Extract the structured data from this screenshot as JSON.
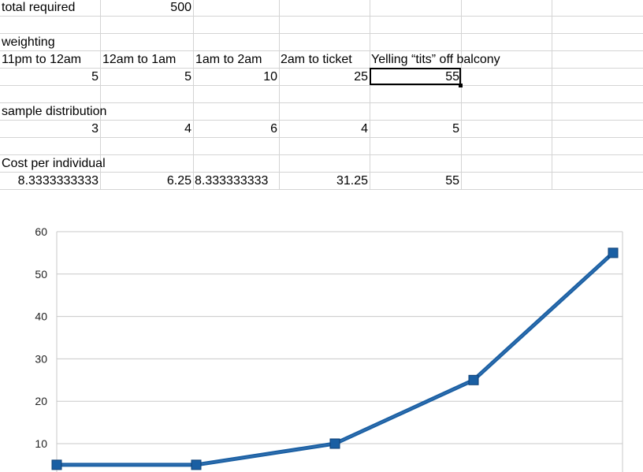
{
  "spreadsheet": {
    "total_required_label": "total required",
    "total_required_value": "500",
    "weighting_label": "weighting",
    "headers": [
      "11pm to 12am",
      "12am to 1am",
      "1am to 2am",
      "2am to ticket",
      "Yelling “tits” off balcony"
    ],
    "weights": [
      "5",
      "5",
      "10",
      "25",
      "55"
    ],
    "sample_label": "sample distribution",
    "samples": [
      "3",
      "4",
      "6",
      "4",
      "5"
    ],
    "cost_label": "Cost per individual",
    "costs": [
      "8.3333333333",
      "6.25",
      "8.333333333",
      "31.25",
      "55"
    ]
  },
  "chart_data": {
    "type": "line",
    "x": [
      1,
      2,
      3,
      4,
      5
    ],
    "series": [
      {
        "values": [
          5,
          5,
          10,
          25,
          55
        ],
        "color": "#1a5fa3"
      }
    ],
    "ylim": [
      0,
      60
    ],
    "yticks": [
      10,
      20,
      30,
      40,
      50,
      60
    ],
    "grid": true,
    "marker": "square"
  }
}
